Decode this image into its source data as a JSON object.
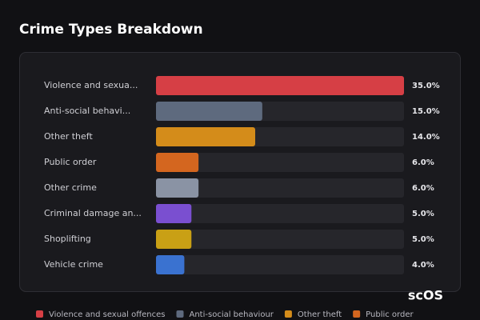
{
  "chart_data": {
    "type": "hbar",
    "title": "Crime Types Breakdown",
    "categories": [
      "Violence and sexua...",
      "Anti-social behavi...",
      "Other theft",
      "Public order",
      "Other crime",
      "Criminal damage an...",
      "Shoplifting",
      "Vehicle crime"
    ],
    "values": [
      35,
      15,
      14,
      6,
      6,
      5,
      5,
      4
    ],
    "value_labels": [
      "35.0%",
      "15.0%",
      "14.0%",
      "6.0%",
      "6.0%",
      "5.0%",
      "5.0%",
      "4.0%"
    ],
    "colors": [
      "#d63f45",
      "#5e6a7e",
      "#d48c1a",
      "#d4661f",
      "#8a93a4",
      "#7a4fd0",
      "#c9a015",
      "#3a72d0"
    ],
    "xlim": [
      0,
      35
    ],
    "legend": [
      {
        "name": "Violence and sexual offences",
        "color": "#d63f45"
      },
      {
        "name": "Anti-social behaviour",
        "color": "#5e6a7e"
      },
      {
        "name": "Other theft",
        "color": "#d48c1a"
      },
      {
        "name": "Public order",
        "color": "#d4661f"
      }
    ]
  },
  "watermark": "scOS"
}
